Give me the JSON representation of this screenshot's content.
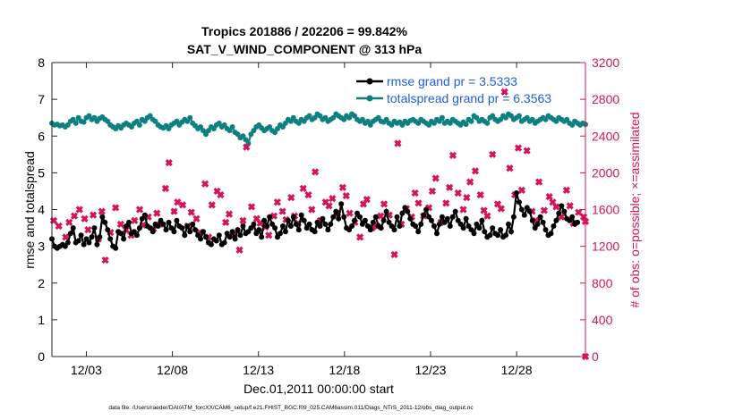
{
  "chart_data": {
    "type": "line",
    "title": "Tropics 201886 / 202206 = 99.842%",
    "subtitle": "SAT_V_WIND_COMPONENT @ 313 hPa",
    "xlabel": "Dec.01,2011 00:00:00 start",
    "ylabel_left": "rmse and totalspread",
    "ylabel_right": "# of obs: o=possible; ×=assimilated",
    "footer": "data file: /Users/raeder/DAI/ATM_forcXX/CAM6_setup/f.e21.FHIST_BGC.f09_025.CAM6assim.011/Diags_NTrS_2011-12/obs_diag_output.nc",
    "xlim": [
      1.0,
      32.0
    ],
    "ylim_left": [
      0,
      8
    ],
    "ylim_right": [
      0,
      3200
    ],
    "x_ticks": [
      3,
      8,
      13,
      18,
      23,
      28
    ],
    "x_tick_labels": [
      "12/03",
      "12/08",
      "12/13",
      "12/18",
      "12/23",
      "12/28"
    ],
    "y_left_ticks": [
      0,
      1,
      2,
      3,
      4,
      5,
      6,
      7,
      8
    ],
    "y_left_tick_labels": [
      "0",
      "1",
      "2",
      "3",
      "4",
      "5",
      "6",
      "7",
      "8"
    ],
    "y_right_ticks": [
      0,
      400,
      800,
      1200,
      1600,
      2000,
      2400,
      2800,
      3200
    ],
    "y_right_tick_labels": [
      "0",
      "400",
      "800",
      "1200",
      "1600",
      "2000",
      "2400",
      "2800",
      "3200"
    ],
    "legend": [
      {
        "label": "rmse grand pr = 3.5333",
        "color": "#000000"
      },
      {
        "label": "totalspread grand pr = 6.3563",
        "color": "#0f8080"
      }
    ],
    "series": [
      {
        "name": "rmse",
        "color": "#000000",
        "values": [
          3.2,
          3.0,
          2.95,
          3.0,
          3.05,
          3.0,
          3.1,
          3.35,
          3.5,
          3.1,
          3.15,
          3.3,
          3.05,
          3.2,
          3.1,
          3.25,
          3.5,
          3.05,
          3.25,
          3.8,
          3.65,
          3.45,
          3.2,
          3.0,
          2.95,
          3.4,
          3.35,
          3.2,
          3.55,
          3.65,
          3.35,
          3.4,
          3.3,
          3.5,
          3.75,
          3.85,
          3.55,
          3.5,
          3.4,
          3.6,
          3.55,
          3.7,
          3.6,
          3.45,
          3.65,
          3.5,
          3.4,
          3.7,
          3.55,
          3.5,
          3.3,
          3.55,
          3.4,
          3.6,
          3.45,
          3.3,
          3.2,
          3.4,
          3.25,
          3.1,
          3.05,
          3.2,
          3.15,
          3.3,
          3.05,
          3.1,
          3.35,
          3.25,
          3.4,
          3.2,
          3.45,
          3.3,
          3.55,
          3.35,
          3.4,
          3.5,
          3.6,
          3.35,
          3.45,
          3.25,
          3.7,
          3.55,
          3.8,
          3.6,
          3.5,
          3.25,
          3.35,
          3.55,
          3.4,
          3.7,
          3.55,
          3.8,
          3.6,
          3.45,
          3.85,
          3.7,
          3.5,
          3.6,
          3.45,
          3.4,
          3.65,
          3.55,
          3.75,
          3.6,
          3.45,
          3.6,
          3.8,
          3.95,
          3.75,
          4.15,
          3.8,
          3.5,
          3.45,
          3.55,
          3.7,
          3.9,
          3.8,
          3.6,
          3.7,
          3.55,
          3.45,
          3.65,
          3.8,
          3.55,
          3.5,
          3.7,
          3.95,
          3.65,
          3.55,
          3.45,
          3.8,
          3.55,
          3.9,
          4.05,
          3.95,
          3.75,
          3.6,
          3.55,
          3.4,
          3.6,
          3.85,
          4.0,
          3.8,
          3.7,
          3.55,
          3.35,
          3.6,
          3.8,
          3.65,
          3.75,
          3.55,
          3.8,
          3.95,
          3.7,
          3.6,
          3.5,
          3.75,
          3.55,
          3.45,
          3.35,
          3.6,
          3.5,
          3.7,
          3.4,
          3.25,
          3.3,
          3.5,
          3.35,
          3.3,
          3.45,
          3.25,
          3.3,
          3.6,
          3.4,
          3.8,
          4.45,
          4.2,
          4.0,
          3.85,
          4.05,
          3.95,
          3.7,
          3.5,
          3.6,
          3.8,
          3.65,
          3.45,
          3.3,
          3.35,
          3.55,
          3.7,
          3.9,
          4.1,
          3.95,
          3.75,
          3.7,
          3.8,
          3.6,
          3.65
        ]
      },
      {
        "name": "totalspread",
        "color": "#0f8080",
        "values": [
          6.35,
          6.3,
          6.32,
          6.28,
          6.3,
          6.25,
          6.3,
          6.4,
          6.45,
          6.35,
          6.5,
          6.4,
          6.38,
          6.5,
          6.55,
          6.45,
          6.5,
          6.4,
          6.48,
          6.52,
          6.45,
          6.4,
          6.3,
          6.25,
          6.2,
          6.28,
          6.22,
          6.3,
          6.35,
          6.3,
          6.25,
          6.35,
          6.4,
          6.3,
          6.45,
          6.4,
          6.5,
          6.55,
          6.45,
          6.4,
          6.3,
          6.25,
          6.22,
          6.28,
          6.2,
          6.3,
          6.35,
          6.4,
          6.3,
          6.38,
          6.45,
          6.4,
          6.5,
          6.35,
          6.28,
          6.2,
          6.25,
          6.15,
          6.05,
          6.15,
          6.25,
          6.2,
          6.3,
          6.35,
          6.25,
          6.3,
          6.2,
          6.15,
          6.25,
          6.1,
          6.05,
          5.95,
          6.0,
          5.9,
          5.8,
          6.05,
          6.15,
          6.25,
          6.3,
          6.22,
          6.15,
          6.2,
          6.25,
          6.15,
          6.1,
          6.2,
          6.3,
          6.25,
          6.35,
          6.45,
          6.4,
          6.5,
          6.4,
          6.35,
          6.45,
          6.4,
          6.5,
          6.55,
          6.45,
          6.5,
          6.6,
          6.55,
          6.45,
          6.5,
          6.4,
          6.45,
          6.5,
          6.6,
          6.55,
          6.5,
          6.45,
          6.55,
          6.5,
          6.6,
          6.55,
          6.45,
          6.4,
          6.45,
          6.35,
          6.4,
          6.3,
          6.4,
          6.45,
          6.5,
          6.4,
          6.38,
          6.45,
          6.35,
          6.3,
          6.4,
          6.35,
          6.38,
          6.3,
          6.4,
          6.35,
          6.42,
          6.45,
          6.4,
          6.35,
          6.45,
          6.4,
          6.35,
          6.3,
          6.4,
          6.35,
          6.45,
          6.4,
          6.5,
          6.35,
          6.4,
          6.35,
          6.45,
          6.4,
          6.35,
          6.3,
          6.38,
          6.32,
          6.45,
          6.4,
          6.55,
          6.5,
          6.4,
          6.45,
          6.4,
          6.35,
          6.5,
          6.55,
          6.45,
          6.4,
          6.45,
          6.55,
          6.5,
          6.6,
          6.55,
          6.45,
          6.5,
          6.55,
          6.4,
          6.45,
          6.5,
          6.4,
          6.45,
          6.35,
          6.4,
          6.45,
          6.5,
          6.45,
          6.55,
          6.5,
          6.45,
          6.4,
          6.5,
          6.45,
          6.4,
          6.45,
          6.35,
          6.3,
          6.4,
          6.35,
          6.3,
          6.35,
          6.32
        ]
      },
      {
        "name": "obs assimilated",
        "color": "#d4145a",
        "points": [
          [
            1.1,
            1480
          ],
          [
            1.4,
            1420
          ],
          [
            1.8,
            1300
          ],
          [
            2.0,
            1460
          ],
          [
            2.3,
            1530
          ],
          [
            2.6,
            1600
          ],
          [
            2.9,
            1500
          ],
          [
            3.1,
            1380
          ],
          [
            3.4,
            1540
          ],
          [
            3.7,
            1280
          ],
          [
            3.9,
            1580
          ],
          [
            4.1,
            1050
          ],
          [
            4.4,
            1350
          ],
          [
            4.7,
            1620
          ],
          [
            5.0,
            1440
          ],
          [
            5.3,
            1380
          ],
          [
            5.6,
            1320
          ],
          [
            5.8,
            1480
          ],
          [
            6.1,
            1600
          ],
          [
            6.3,
            1430
          ],
          [
            6.6,
            1520
          ],
          [
            6.9,
            1390
          ],
          [
            7.1,
            1560
          ],
          [
            7.3,
            1440
          ],
          [
            7.6,
            1830
          ],
          [
            7.8,
            2110
          ],
          [
            8.1,
            1580
          ],
          [
            8.3,
            1680
          ],
          [
            8.6,
            1650
          ],
          [
            8.9,
            1420
          ],
          [
            9.1,
            1570
          ],
          [
            9.4,
            1500
          ],
          [
            9.6,
            1350
          ],
          [
            9.9,
            1880
          ],
          [
            10.1,
            1300
          ],
          [
            10.3,
            1650
          ],
          [
            10.6,
            1800
          ],
          [
            10.8,
            1760
          ],
          [
            11.1,
            1460
          ],
          [
            11.3,
            1550
          ],
          [
            11.6,
            1330
          ],
          [
            11.9,
            1160
          ],
          [
            12.1,
            1480
          ],
          [
            12.3,
            2280
          ],
          [
            12.6,
            1630
          ],
          [
            12.9,
            1500
          ],
          [
            13.1,
            1450
          ],
          [
            13.4,
            1410
          ],
          [
            13.6,
            1320
          ],
          [
            13.9,
            1530
          ],
          [
            14.1,
            1680
          ],
          [
            14.4,
            1580
          ],
          [
            14.6,
            1490
          ],
          [
            14.9,
            1730
          ],
          [
            15.1,
            1530
          ],
          [
            15.3,
            1450
          ],
          [
            15.6,
            1830
          ],
          [
            15.9,
            1760
          ],
          [
            16.1,
            1600
          ],
          [
            16.3,
            2010
          ],
          [
            16.6,
            1480
          ],
          [
            16.9,
            1680
          ],
          [
            17.1,
            1640
          ],
          [
            17.3,
            1720
          ],
          [
            17.6,
            1560
          ],
          [
            17.9,
            1840
          ],
          [
            18.1,
            1750
          ],
          [
            18.3,
            1560
          ],
          [
            18.6,
            1460
          ],
          [
            18.9,
            1300
          ],
          [
            19.1,
            1660
          ],
          [
            19.3,
            1710
          ],
          [
            19.6,
            1400
          ],
          [
            19.9,
            1420
          ],
          [
            20.1,
            1530
          ],
          [
            20.3,
            1660
          ],
          [
            20.6,
            1540
          ],
          [
            20.9,
            1110
          ],
          [
            21.1,
            2320
          ],
          [
            21.3,
            1440
          ],
          [
            21.6,
            1610
          ],
          [
            21.9,
            1520
          ],
          [
            22.1,
            1780
          ],
          [
            22.3,
            1670
          ],
          [
            22.6,
            1530
          ],
          [
            22.9,
            1620
          ],
          [
            23.1,
            1800
          ],
          [
            23.3,
            1940
          ],
          [
            23.6,
            1460
          ],
          [
            23.9,
            1670
          ],
          [
            24.1,
            1840
          ],
          [
            24.3,
            2190
          ],
          [
            24.6,
            1780
          ],
          [
            24.9,
            1600
          ],
          [
            25.1,
            1730
          ],
          [
            25.3,
            1900
          ],
          [
            25.6,
            2020
          ],
          [
            25.9,
            1760
          ],
          [
            26.1,
            1590
          ],
          [
            26.3,
            1530
          ],
          [
            26.6,
            2200
          ],
          [
            26.9,
            1660
          ],
          [
            27.1,
            1610
          ],
          [
            27.3,
            2880
          ],
          [
            27.6,
            2050
          ],
          [
            27.9,
            1760
          ],
          [
            28.1,
            2270
          ],
          [
            28.3,
            1810
          ],
          [
            28.6,
            2240
          ],
          [
            28.9,
            1580
          ],
          [
            29.1,
            1480
          ],
          [
            29.3,
            1900
          ],
          [
            29.6,
            1590
          ],
          [
            29.9,
            1740
          ],
          [
            30.1,
            1680
          ],
          [
            30.3,
            1630
          ],
          [
            30.6,
            1520
          ],
          [
            30.9,
            1810
          ],
          [
            31.1,
            1640
          ],
          [
            31.3,
            1450
          ],
          [
            31.6,
            1570
          ],
          [
            31.9,
            1520
          ],
          [
            32.0,
            1470
          ]
        ]
      }
    ],
    "extra_points": [
      [
        32.0,
        0
      ]
    ]
  },
  "colors": {
    "rmse": "#000000",
    "spread": "#0f8080",
    "obs": "#d4145a",
    "legend_text": "#1f5fd6",
    "axis": "#262626"
  }
}
